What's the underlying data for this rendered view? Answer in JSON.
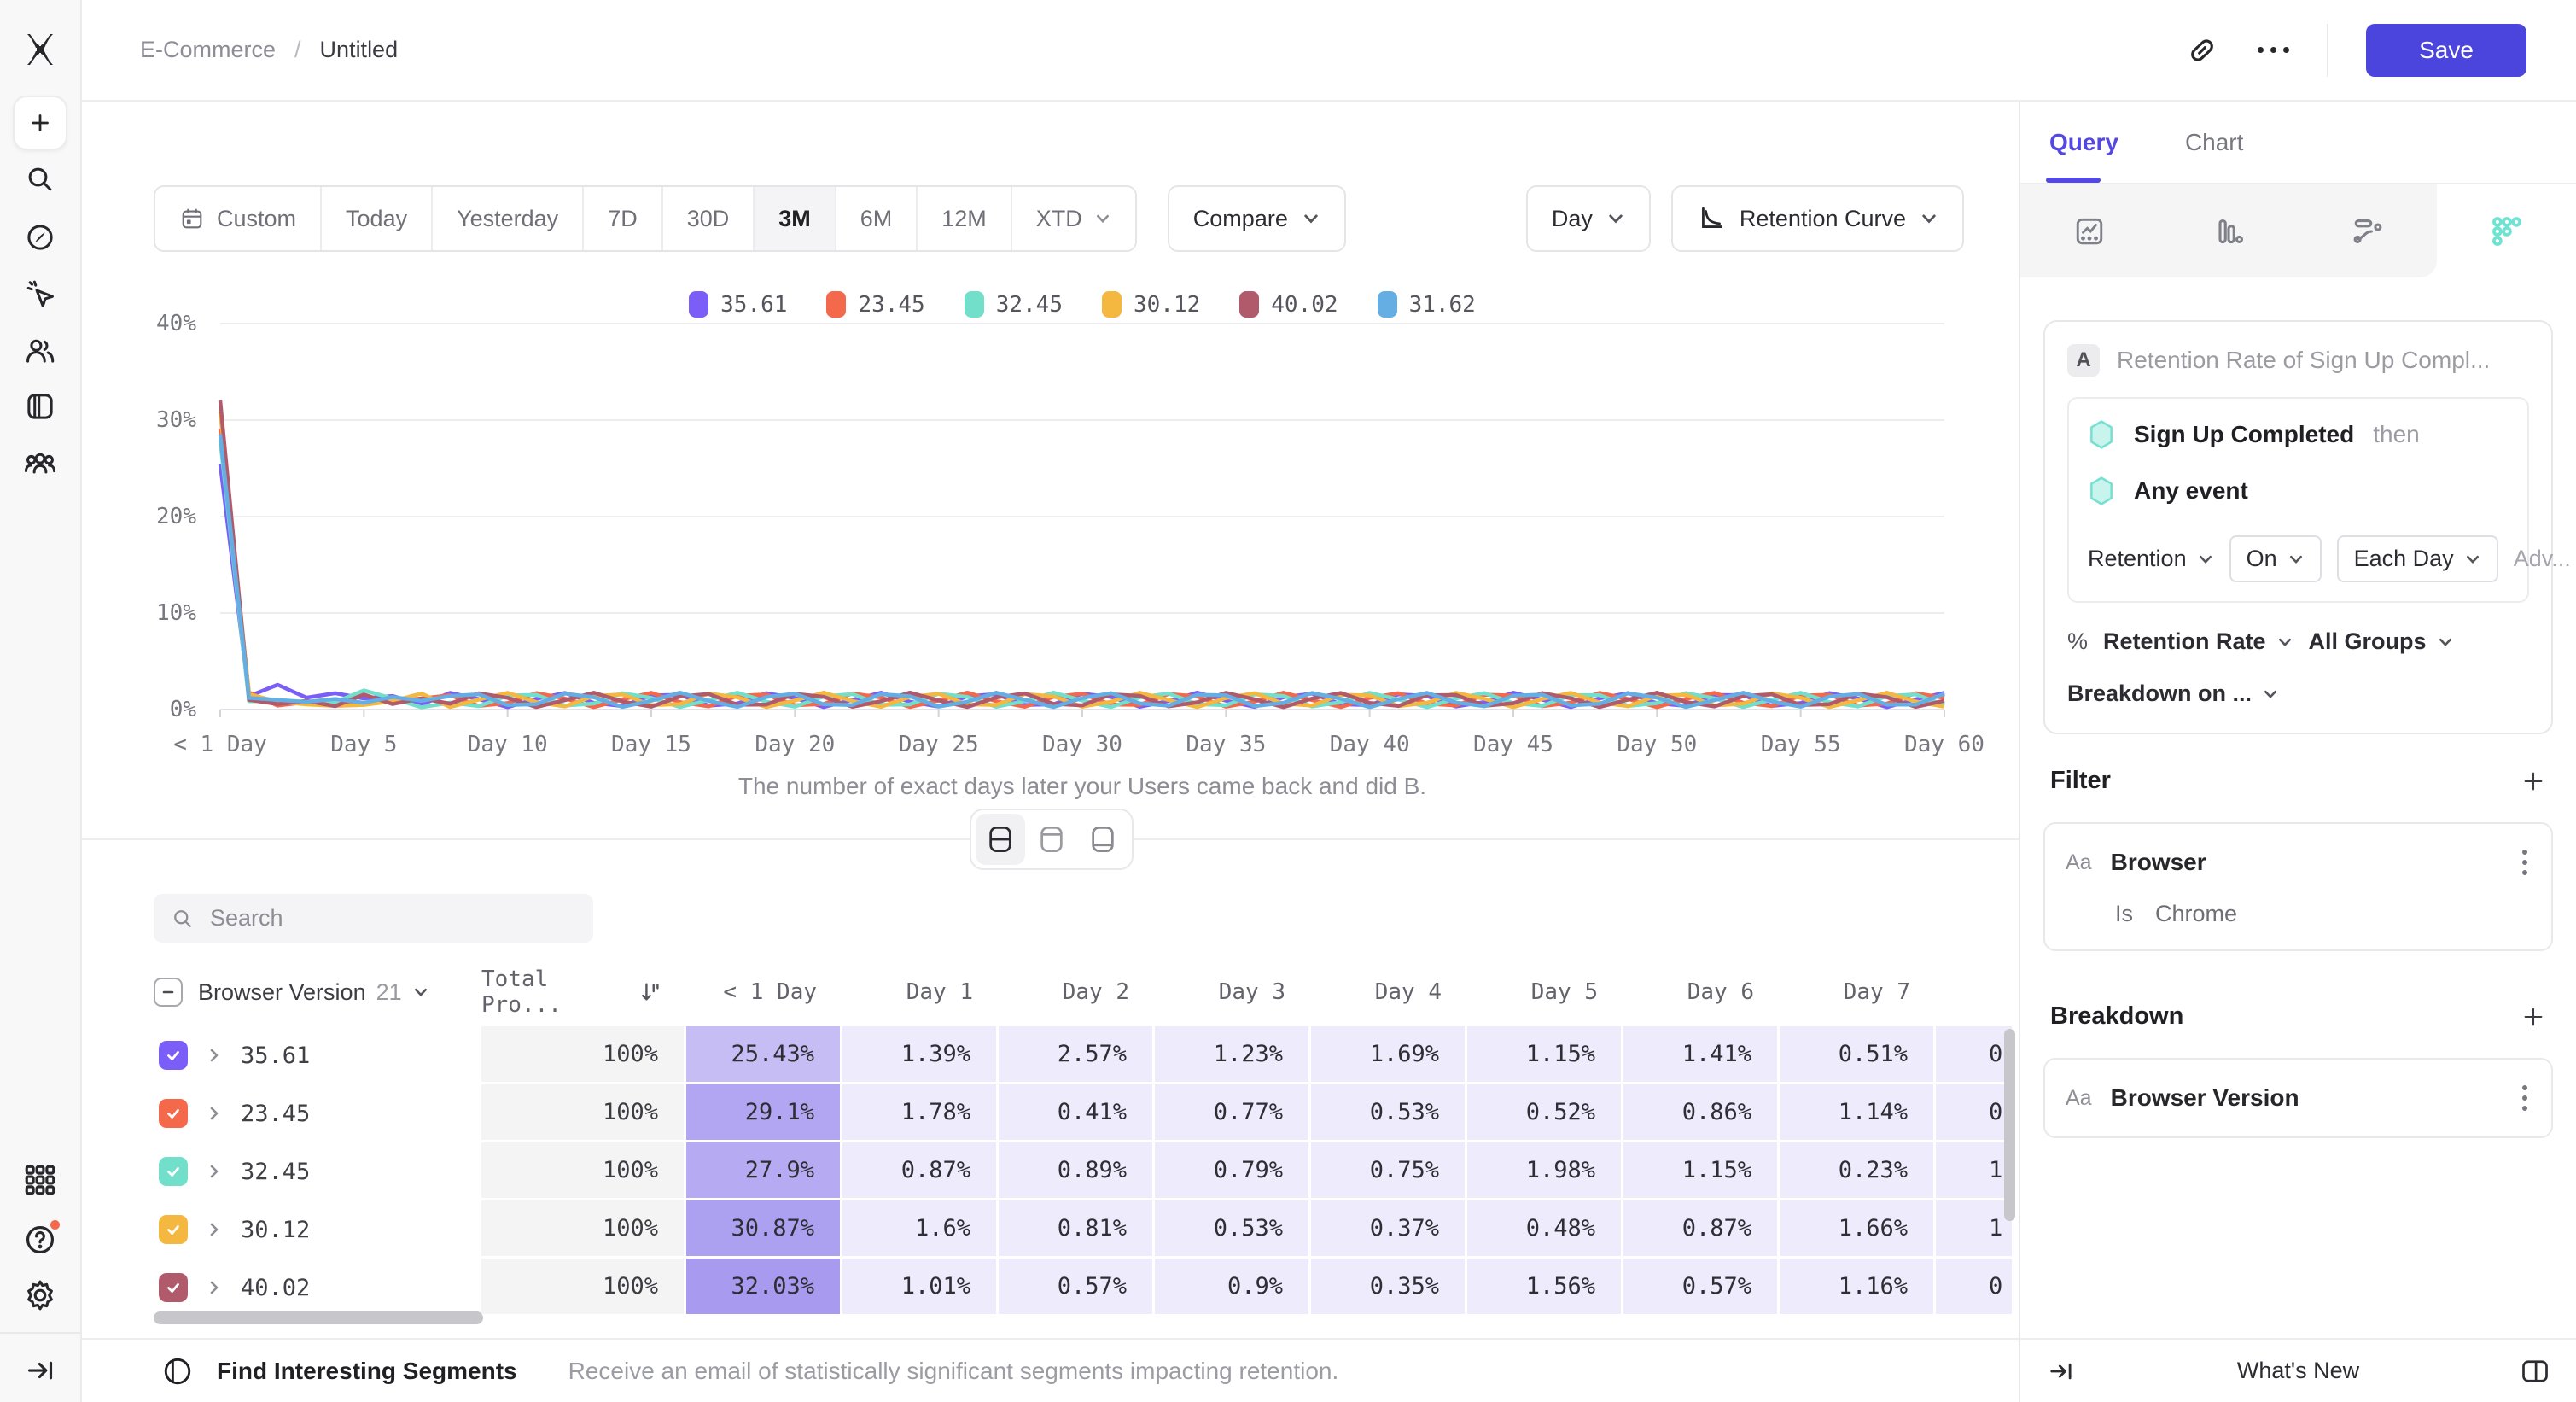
{
  "app": {
    "breadcrumb_project": "E-Commerce",
    "breadcrumb_separator": "/",
    "breadcrumb_report": "Untitled",
    "save_label": "Save"
  },
  "colors": {
    "accent_purple": "#5348e0",
    "save_button": "#4b44dd",
    "teal_event": "#6fe3d2",
    "notification": "#f5694b",
    "table_day_cell": "#edebfc",
    "table_total_cell": "#f4f4f5"
  },
  "toolbar": {
    "ranges": [
      "Custom",
      "Today",
      "Yesterday",
      "7D",
      "30D",
      "3M",
      "6M",
      "12M",
      "XTD"
    ],
    "active_range": "3M",
    "compare_label": "Compare",
    "granularity_label": "Day",
    "chart_type_label": "Retention Curve"
  },
  "caption": "The number of exact days later your Users came back and did B.",
  "search_placeholder": "Search",
  "chart_data": {
    "type": "line",
    "title": "Retention Curve",
    "x_tick_labels": [
      "< 1 Day",
      "Day 5",
      "Day 10",
      "Day 15",
      "Day 20",
      "Day 25",
      "Day 30",
      "Day 35",
      "Day 40",
      "Day 45",
      "Day 50",
      "Day 55",
      "Day 60"
    ],
    "y_tick_labels": [
      "40%",
      "30%",
      "20%",
      "10%",
      "0%"
    ],
    "ylim": [
      0,
      40
    ],
    "x_days": [
      0,
      60
    ],
    "grid": true,
    "legend_position": "top-center",
    "series": [
      {
        "name": "35.61",
        "color": "#7b5ef7",
        "values_day0_to_7": [
          25.43,
          1.39,
          2.57,
          1.23,
          1.69,
          1.15,
          1.41,
          0.51
        ]
      },
      {
        "name": "23.45",
        "color": "#f4694c",
        "values_day0_to_7": [
          29.1,
          1.78,
          0.41,
          0.77,
          0.53,
          0.52,
          0.86,
          1.14
        ]
      },
      {
        "name": "32.45",
        "color": "#72dfca",
        "values_day0_to_7": [
          27.9,
          0.87,
          0.89,
          0.79,
          0.75,
          1.98,
          1.15,
          0.23
        ]
      },
      {
        "name": "30.12",
        "color": "#f4b73f",
        "values_day0_to_7": [
          30.87,
          1.6,
          0.81,
          0.53,
          0.37,
          0.48,
          0.87,
          1.66
        ]
      },
      {
        "name": "40.02",
        "color": "#b05a6b",
        "values_day0_to_7": [
          32.03,
          1.01,
          0.57,
          0.9,
          0.35,
          1.56,
          0.57,
          1.16
        ]
      },
      {
        "name": "31.62",
        "color": "#64aee3",
        "values_day0_to_7": [
          28.5,
          1.2,
          1.0,
          0.8,
          1.1,
          0.7,
          1.3,
          0.9
        ]
      }
    ],
    "tail_noise_estimate": {
      "base": 1.0,
      "amp": 0.75,
      "freq": 1.7,
      "min": 0.2,
      "phases": [
        0.3,
        1.4,
        2.5,
        3.6,
        4.7,
        5.8
      ]
    }
  },
  "table": {
    "select_all_state": "indeterminate",
    "group_column": {
      "label": "Browser Version",
      "count": "21"
    },
    "total_column_label": "Total Pro...",
    "day_columns": [
      "< 1 Day",
      "Day 1",
      "Day 2",
      "Day 3",
      "Day 4",
      "Day 5",
      "Day 6",
      "Day 7"
    ],
    "rows": [
      {
        "name": "35.61",
        "color": "#7b5ef7",
        "checked": true,
        "total": "100%",
        "first_cell_bg": "#c7bdf5",
        "cells": [
          "25.43%",
          "1.39%",
          "2.57%",
          "1.23%",
          "1.69%",
          "1.15%",
          "1.41%",
          "0.51%"
        ],
        "day8_partial": "0"
      },
      {
        "name": "23.45",
        "color": "#f4694c",
        "checked": true,
        "total": "100%",
        "first_cell_bg": "#b2a6f2",
        "cells": [
          "29.1%",
          "1.78%",
          "0.41%",
          "0.77%",
          "0.53%",
          "0.52%",
          "0.86%",
          "1.14%"
        ],
        "day8_partial": "0"
      },
      {
        "name": "32.45",
        "color": "#72dfca",
        "checked": true,
        "total": "100%",
        "first_cell_bg": "#b6abf2",
        "cells": [
          "27.9%",
          "0.87%",
          "0.89%",
          "0.79%",
          "0.75%",
          "1.98%",
          "1.15%",
          "0.23%"
        ],
        "day8_partial": "1"
      },
      {
        "name": "30.12",
        "color": "#f4b73f",
        "checked": true,
        "total": "100%",
        "first_cell_bg": "#aca0f0",
        "cells": [
          "30.87%",
          "1.6%",
          "0.81%",
          "0.53%",
          "0.37%",
          "0.48%",
          "0.87%",
          "1.66%"
        ],
        "day8_partial": "1"
      },
      {
        "name": "40.02",
        "color": "#b05a6b",
        "checked": true,
        "total": "100%",
        "first_cell_bg": "#a89bef",
        "cells": [
          "32.03%",
          "1.01%",
          "0.57%",
          "0.9%",
          "0.35%",
          "1.56%",
          "0.57%",
          "1.16%"
        ],
        "day8_partial": "0"
      }
    ]
  },
  "footer_main": {
    "title": "Find Interesting Segments",
    "description": "Receive an email of statistically significant segments impacting retention."
  },
  "panel": {
    "tabs": [
      {
        "label": "Query"
      },
      {
        "label": "Chart"
      }
    ],
    "active_tab": "Query",
    "query": {
      "step_letter": "A",
      "step_title": "Retention Rate of Sign Up Compl...",
      "first_event": "Sign Up Completed",
      "first_event_suffix": "then",
      "return_event": "Any event",
      "mode": "Retention",
      "on_label": "On",
      "interval": "Each Day",
      "advanced": "Adv...",
      "measure_prefix": "%",
      "measure": "Retention Rate",
      "groups": "All Groups",
      "breakdown_on": "Breakdown on ..."
    },
    "filter": {
      "title": "Filter",
      "property_type": "Aa",
      "property": "Browser",
      "operator": "Is",
      "value": "Chrome"
    },
    "breakdown": {
      "title": "Breakdown",
      "property_type": "Aa",
      "property": "Browser Version"
    },
    "footer": {
      "whats_new": "What's New"
    }
  }
}
